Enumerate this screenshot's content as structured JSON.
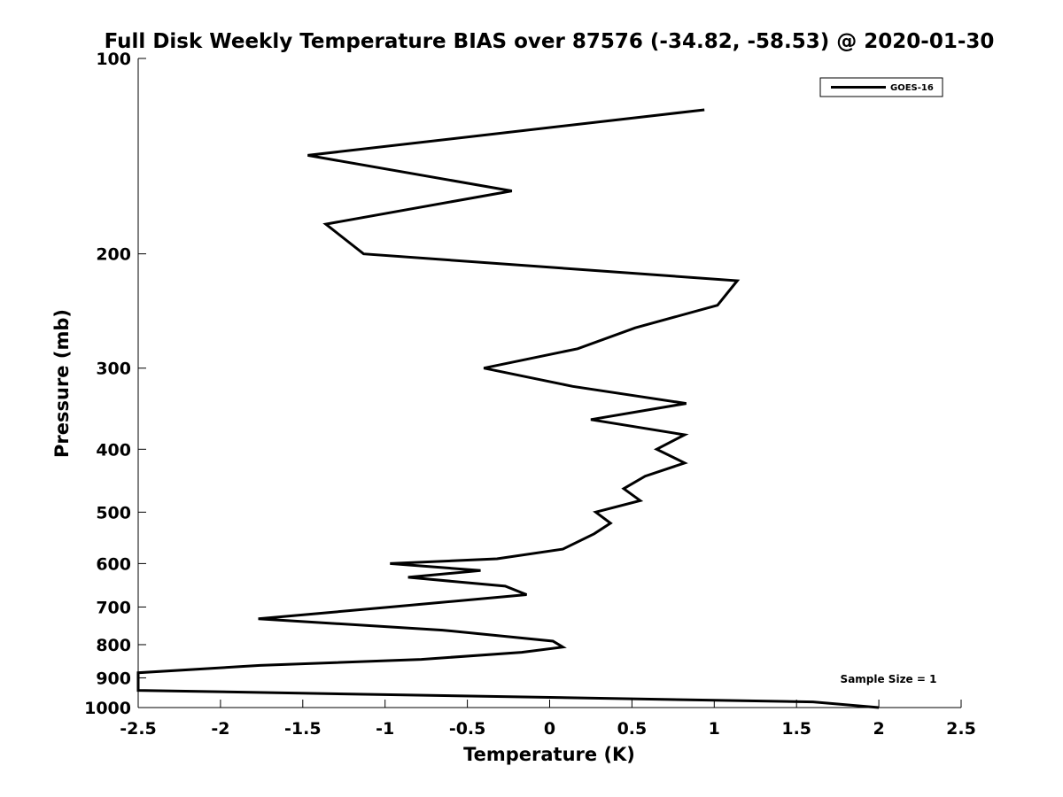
{
  "chart_data": {
    "type": "line",
    "title": "Full Disk Weekly Temperature BIAS over 87576 (-34.82, -58.53) @ 2020-01-30",
    "xlabel": "Temperature (K)",
    "ylabel": "Pressure (mb)",
    "xlim": [
      -2.5,
      2.5
    ],
    "ylim": [
      100,
      1000
    ],
    "y_scale": "log",
    "y_inverted": true,
    "grid": false,
    "x_ticks": [
      -2.5,
      -2,
      -1.5,
      -1,
      -0.5,
      0,
      0.5,
      1,
      1.5,
      2,
      2.5
    ],
    "x_tick_labels": [
      "-2.5",
      "-2",
      "-1.5",
      "-1",
      "-0.5",
      "0",
      "0.5",
      "1",
      "1.5",
      "2",
      "2.5"
    ],
    "y_ticks": [
      100,
      200,
      300,
      400,
      500,
      600,
      700,
      800,
      900,
      1000
    ],
    "y_tick_labels": [
      "100",
      "200",
      "300",
      "400",
      "500",
      "600",
      "700",
      "800",
      "900",
      "1000"
    ],
    "legend": {
      "position": "top-right",
      "entries": [
        "GOES-16"
      ]
    },
    "annotation": "Sample Size = 1",
    "line_color": "#000000",
    "series": [
      {
        "name": "GOES-16",
        "points": [
          {
            "x": 0.94,
            "p": 120
          },
          {
            "x": -1.47,
            "p": 141
          },
          {
            "x": -0.23,
            "p": 160
          },
          {
            "x": -1.36,
            "p": 180
          },
          {
            "x": -1.13,
            "p": 200
          },
          {
            "x": 1.14,
            "p": 220
          },
          {
            "x": 1.02,
            "p": 240
          },
          {
            "x": 0.52,
            "p": 260
          },
          {
            "x": 0.17,
            "p": 280
          },
          {
            "x": -0.4,
            "p": 300
          },
          {
            "x": 0.14,
            "p": 320
          },
          {
            "x": 0.83,
            "p": 340
          },
          {
            "x": 0.25,
            "p": 360
          },
          {
            "x": 0.82,
            "p": 380
          },
          {
            "x": 0.65,
            "p": 400
          },
          {
            "x": 0.82,
            "p": 420
          },
          {
            "x": 0.58,
            "p": 440
          },
          {
            "x": 0.45,
            "p": 460
          },
          {
            "x": 0.55,
            "p": 480
          },
          {
            "x": 0.28,
            "p": 500
          },
          {
            "x": 0.37,
            "p": 520
          },
          {
            "x": 0.27,
            "p": 540
          },
          {
            "x": 0.08,
            "p": 570
          },
          {
            "x": -0.32,
            "p": 590
          },
          {
            "x": -0.97,
            "p": 600
          },
          {
            "x": -0.42,
            "p": 615
          },
          {
            "x": -0.86,
            "p": 630
          },
          {
            "x": -0.27,
            "p": 650
          },
          {
            "x": -0.14,
            "p": 670
          },
          {
            "x": -0.97,
            "p": 700
          },
          {
            "x": -1.77,
            "p": 730
          },
          {
            "x": -0.65,
            "p": 760
          },
          {
            "x": 0.02,
            "p": 790
          },
          {
            "x": 0.08,
            "p": 807
          },
          {
            "x": -0.17,
            "p": 822
          },
          {
            "x": -0.78,
            "p": 843
          },
          {
            "x": -1.76,
            "p": 861
          },
          {
            "x": -2.5,
            "p": 884
          },
          {
            "x": -2.5,
            "p": 941
          },
          {
            "x": 1.6,
            "p": 980
          },
          {
            "x": 2.0,
            "p": 1000
          }
        ]
      }
    ]
  }
}
